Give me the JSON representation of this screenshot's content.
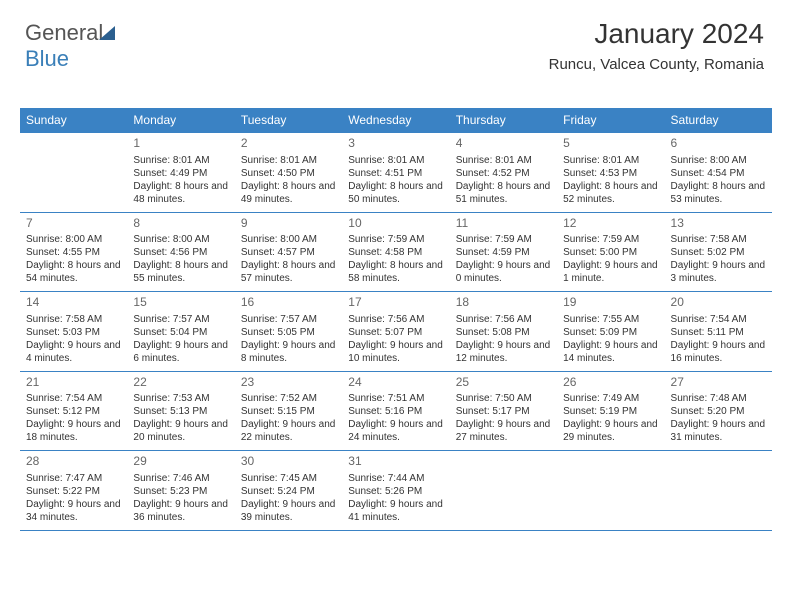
{
  "logo": {
    "text1": "General",
    "text2": "Blue"
  },
  "header": {
    "month_title": "January 2024",
    "location": "Runcu, Valcea County, Romania"
  },
  "calendar": {
    "day_labels": [
      "Sunday",
      "Monday",
      "Tuesday",
      "Wednesday",
      "Thursday",
      "Friday",
      "Saturday"
    ],
    "header_bg": "#3a82c4",
    "header_fg": "#ffffff",
    "border_color": "#3a82c4",
    "weeks": [
      [
        null,
        {
          "n": "1",
          "sr": "8:01 AM",
          "ss": "4:49 PM",
          "dl": "8 hours and 48 minutes."
        },
        {
          "n": "2",
          "sr": "8:01 AM",
          "ss": "4:50 PM",
          "dl": "8 hours and 49 minutes."
        },
        {
          "n": "3",
          "sr": "8:01 AM",
          "ss": "4:51 PM",
          "dl": "8 hours and 50 minutes."
        },
        {
          "n": "4",
          "sr": "8:01 AM",
          "ss": "4:52 PM",
          "dl": "8 hours and 51 minutes."
        },
        {
          "n": "5",
          "sr": "8:01 AM",
          "ss": "4:53 PM",
          "dl": "8 hours and 52 minutes."
        },
        {
          "n": "6",
          "sr": "8:00 AM",
          "ss": "4:54 PM",
          "dl": "8 hours and 53 minutes."
        }
      ],
      [
        {
          "n": "7",
          "sr": "8:00 AM",
          "ss": "4:55 PM",
          "dl": "8 hours and 54 minutes."
        },
        {
          "n": "8",
          "sr": "8:00 AM",
          "ss": "4:56 PM",
          "dl": "8 hours and 55 minutes."
        },
        {
          "n": "9",
          "sr": "8:00 AM",
          "ss": "4:57 PM",
          "dl": "8 hours and 57 minutes."
        },
        {
          "n": "10",
          "sr": "7:59 AM",
          "ss": "4:58 PM",
          "dl": "8 hours and 58 minutes."
        },
        {
          "n": "11",
          "sr": "7:59 AM",
          "ss": "4:59 PM",
          "dl": "9 hours and 0 minutes."
        },
        {
          "n": "12",
          "sr": "7:59 AM",
          "ss": "5:00 PM",
          "dl": "9 hours and 1 minute."
        },
        {
          "n": "13",
          "sr": "7:58 AM",
          "ss": "5:02 PM",
          "dl": "9 hours and 3 minutes."
        }
      ],
      [
        {
          "n": "14",
          "sr": "7:58 AM",
          "ss": "5:03 PM",
          "dl": "9 hours and 4 minutes."
        },
        {
          "n": "15",
          "sr": "7:57 AM",
          "ss": "5:04 PM",
          "dl": "9 hours and 6 minutes."
        },
        {
          "n": "16",
          "sr": "7:57 AM",
          "ss": "5:05 PM",
          "dl": "9 hours and 8 minutes."
        },
        {
          "n": "17",
          "sr": "7:56 AM",
          "ss": "5:07 PM",
          "dl": "9 hours and 10 minutes."
        },
        {
          "n": "18",
          "sr": "7:56 AM",
          "ss": "5:08 PM",
          "dl": "9 hours and 12 minutes."
        },
        {
          "n": "19",
          "sr": "7:55 AM",
          "ss": "5:09 PM",
          "dl": "9 hours and 14 minutes."
        },
        {
          "n": "20",
          "sr": "7:54 AM",
          "ss": "5:11 PM",
          "dl": "9 hours and 16 minutes."
        }
      ],
      [
        {
          "n": "21",
          "sr": "7:54 AM",
          "ss": "5:12 PM",
          "dl": "9 hours and 18 minutes."
        },
        {
          "n": "22",
          "sr": "7:53 AM",
          "ss": "5:13 PM",
          "dl": "9 hours and 20 minutes."
        },
        {
          "n": "23",
          "sr": "7:52 AM",
          "ss": "5:15 PM",
          "dl": "9 hours and 22 minutes."
        },
        {
          "n": "24",
          "sr": "7:51 AM",
          "ss": "5:16 PM",
          "dl": "9 hours and 24 minutes."
        },
        {
          "n": "25",
          "sr": "7:50 AM",
          "ss": "5:17 PM",
          "dl": "9 hours and 27 minutes."
        },
        {
          "n": "26",
          "sr": "7:49 AM",
          "ss": "5:19 PM",
          "dl": "9 hours and 29 minutes."
        },
        {
          "n": "27",
          "sr": "7:48 AM",
          "ss": "5:20 PM",
          "dl": "9 hours and 31 minutes."
        }
      ],
      [
        {
          "n": "28",
          "sr": "7:47 AM",
          "ss": "5:22 PM",
          "dl": "9 hours and 34 minutes."
        },
        {
          "n": "29",
          "sr": "7:46 AM",
          "ss": "5:23 PM",
          "dl": "9 hours and 36 minutes."
        },
        {
          "n": "30",
          "sr": "7:45 AM",
          "ss": "5:24 PM",
          "dl": "9 hours and 39 minutes."
        },
        {
          "n": "31",
          "sr": "7:44 AM",
          "ss": "5:26 PM",
          "dl": "9 hours and 41 minutes."
        },
        null,
        null,
        null
      ]
    ],
    "labels": {
      "sunrise": "Sunrise:",
      "sunset": "Sunset:",
      "daylight": "Daylight:"
    }
  }
}
